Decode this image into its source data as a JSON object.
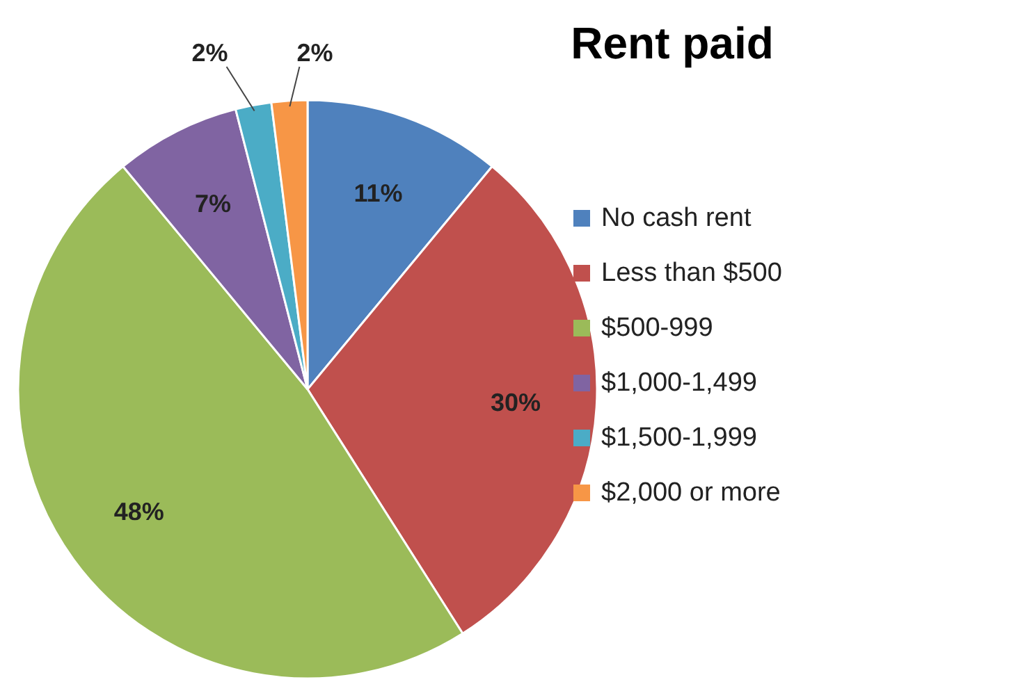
{
  "chart_data": {
    "type": "pie",
    "title": "Rent paid",
    "categories": [
      "No cash rent",
      "Less than $500",
      "$500-999",
      "$1,000-1,499",
      "$1,500-1,999",
      "$2,000 or more"
    ],
    "values": [
      11,
      30,
      48,
      7,
      2,
      2
    ],
    "value_labels": [
      "11%",
      "30%",
      "48%",
      "7%",
      "2%",
      "2%"
    ],
    "colors": [
      "#4f81bd",
      "#c0504d",
      "#9bbb59",
      "#8064a2",
      "#4bacc6",
      "#f79646"
    ],
    "legend": "right"
  }
}
